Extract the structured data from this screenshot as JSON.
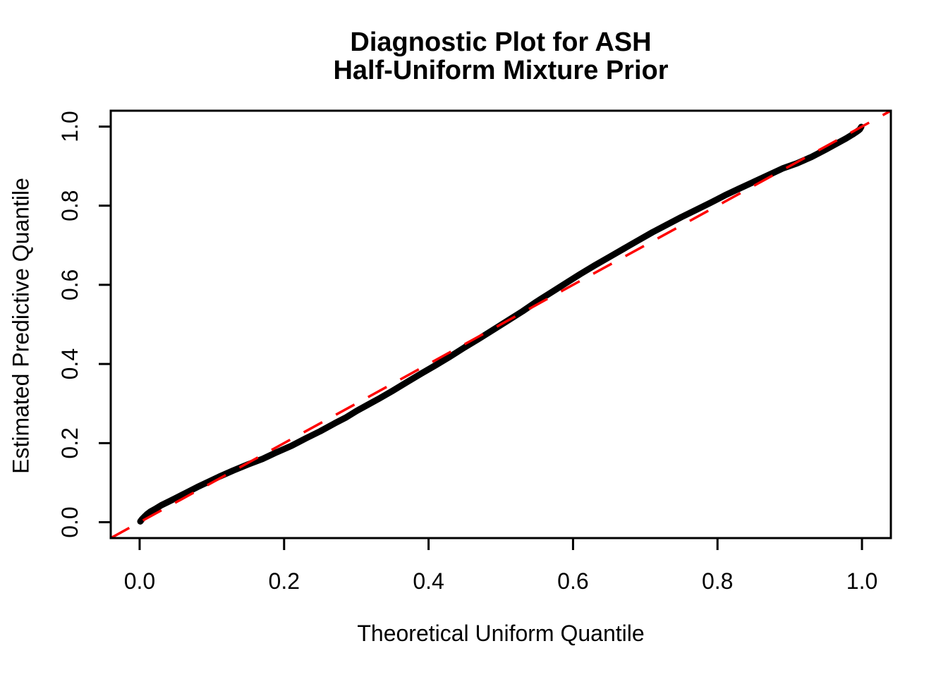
{
  "title": {
    "line1": "Diagnostic Plot for ASH",
    "line2": "Half-Uniform Mixture Prior"
  },
  "chart_data": {
    "type": "scatter",
    "title": "Diagnostic Plot for ASH\nHalf-Uniform Mixture Prior",
    "xlabel": "Theoretical Uniform Quantile",
    "ylabel": "Estimated Predictive Quantile",
    "xlim": [
      -0.04,
      1.04
    ],
    "ylim": [
      -0.04,
      1.04
    ],
    "grid": false,
    "legend": "none",
    "x_tick_values": [
      0.0,
      0.2,
      0.4,
      0.6,
      0.8,
      1.0
    ],
    "x_tick_labels": [
      "0.0",
      "0.2",
      "0.4",
      "0.6",
      "0.8",
      "1.0"
    ],
    "y_tick_values": [
      0.0,
      0.2,
      0.4,
      0.6,
      0.8,
      1.0
    ],
    "y_tick_labels": [
      "0.0",
      "0.2",
      "0.4",
      "0.6",
      "0.8",
      "1.0"
    ],
    "series": [
      {
        "name": "estimated-predictive-quantiles",
        "type": "points",
        "color": "#000000",
        "points": [
          [
            0.001,
            0.002
          ],
          [
            0.003,
            0.007
          ],
          [
            0.006,
            0.013
          ],
          [
            0.01,
            0.02
          ],
          [
            0.015,
            0.027
          ],
          [
            0.022,
            0.034
          ],
          [
            0.03,
            0.043
          ],
          [
            0.04,
            0.052
          ],
          [
            0.05,
            0.061
          ],
          [
            0.065,
            0.075
          ],
          [
            0.08,
            0.089
          ],
          [
            0.095,
            0.102
          ],
          [
            0.11,
            0.115
          ],
          [
            0.13,
            0.131
          ],
          [
            0.15,
            0.146
          ],
          [
            0.17,
            0.16
          ],
          [
            0.19,
            0.177
          ],
          [
            0.21,
            0.193
          ],
          [
            0.23,
            0.212
          ],
          [
            0.25,
            0.23
          ],
          [
            0.27,
            0.25
          ],
          [
            0.285,
            0.264
          ],
          [
            0.3,
            0.281
          ],
          [
            0.315,
            0.296
          ],
          [
            0.33,
            0.311
          ],
          [
            0.35,
            0.332
          ],
          [
            0.37,
            0.354
          ],
          [
            0.39,
            0.376
          ],
          [
            0.41,
            0.397
          ],
          [
            0.43,
            0.419
          ],
          [
            0.45,
            0.442
          ],
          [
            0.47,
            0.464
          ],
          [
            0.49,
            0.487
          ],
          [
            0.51,
            0.51
          ],
          [
            0.53,
            0.533
          ],
          [
            0.55,
            0.558
          ],
          [
            0.57,
            0.581
          ],
          [
            0.59,
            0.604
          ],
          [
            0.61,
            0.627
          ],
          [
            0.63,
            0.649
          ],
          [
            0.65,
            0.67
          ],
          [
            0.67,
            0.691
          ],
          [
            0.69,
            0.712
          ],
          [
            0.71,
            0.733
          ],
          [
            0.73,
            0.752
          ],
          [
            0.75,
            0.771
          ],
          [
            0.77,
            0.789
          ],
          [
            0.79,
            0.807
          ],
          [
            0.81,
            0.826
          ],
          [
            0.83,
            0.843
          ],
          [
            0.85,
            0.86
          ],
          [
            0.87,
            0.877
          ],
          [
            0.89,
            0.894
          ],
          [
            0.91,
            0.907
          ],
          [
            0.93,
            0.923
          ],
          [
            0.95,
            0.942
          ],
          [
            0.965,
            0.957
          ],
          [
            0.978,
            0.97
          ],
          [
            0.987,
            0.98
          ],
          [
            0.992,
            0.986
          ],
          [
            0.995,
            0.99
          ],
          [
            0.997,
            0.993
          ],
          [
            0.998,
            0.996
          ],
          [
            0.999,
            0.999
          ]
        ]
      },
      {
        "name": "reference-diagonal",
        "type": "line",
        "style": "dashed",
        "color": "#FF0000",
        "points": [
          [
            -0.04,
            -0.04
          ],
          [
            1.04,
            1.04
          ]
        ]
      }
    ]
  },
  "colors": {
    "points": "#000000",
    "reference_line": "#FF0000",
    "axis": "#000000",
    "background": "#FFFFFF"
  }
}
